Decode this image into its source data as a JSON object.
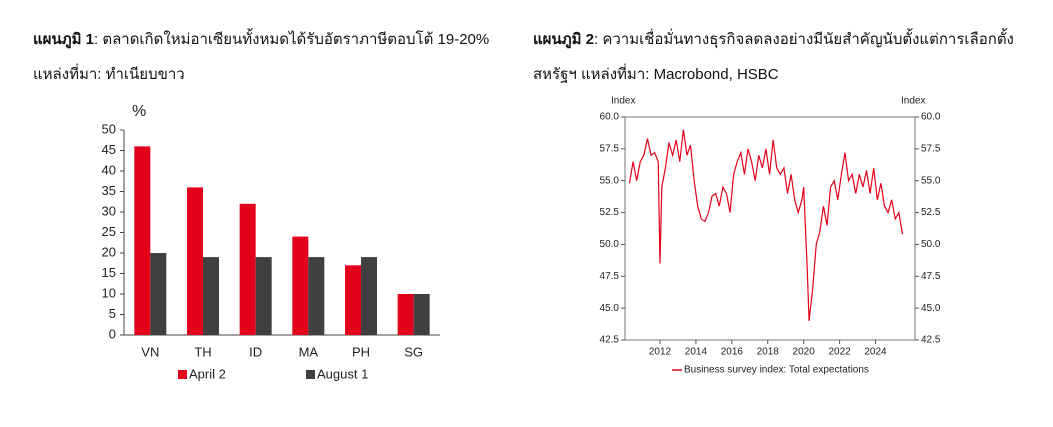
{
  "chart_data": [
    {
      "type": "bar",
      "label": "แผนภูมิ 1",
      "title": ": ตลาดเกิดใหม่อาเซียนทั้งหมดได้รับอัตราภาษีตอบโต้ 19-20% แหล่งที่มา: ทำเนียบขาว",
      "y_label": "%",
      "categories": [
        "VN",
        "TH",
        "ID",
        "MA",
        "PH",
        "SG"
      ],
      "series": [
        {
          "name": "April 2",
          "color": "#e2001a",
          "values": [
            46,
            36,
            32,
            24,
            17,
            10
          ]
        },
        {
          "name": "August 1",
          "color": "#404040",
          "values": [
            20,
            19,
            19,
            19,
            19,
            10
          ]
        }
      ],
      "ylim": [
        0,
        50
      ],
      "yticks": [
        0,
        5,
        10,
        15,
        20,
        25,
        30,
        35,
        40,
        45,
        50
      ],
      "grid": false
    },
    {
      "type": "line",
      "label": "แผนภูมิ 2",
      "title": ": ความเชื่อมั่นทางธุรกิจลดลงอย่างมีนัยสำคัญนับตั้งแต่การเลือกตั้งสหรัฐฯ แหล่งที่มา: Macrobond, HSBC",
      "y_label": "Index",
      "y2_label": "Index",
      "x": [
        2010.3,
        2010.5,
        2010.7,
        2010.9,
        2011.1,
        2011.3,
        2011.5,
        2011.7,
        2011.9,
        2012.0,
        2012.1,
        2012.3,
        2012.5,
        2012.7,
        2012.9,
        2013.1,
        2013.3,
        2013.5,
        2013.7,
        2013.9,
        2014.1,
        2014.3,
        2014.5,
        2014.7,
        2014.9,
        2015.1,
        2015.3,
        2015.5,
        2015.7,
        2015.9,
        2016.1,
        2016.3,
        2016.5,
        2016.7,
        2016.9,
        2017.1,
        2017.3,
        2017.5,
        2017.7,
        2017.9,
        2018.1,
        2018.3,
        2018.5,
        2018.7,
        2018.9,
        2019.1,
        2019.3,
        2019.5,
        2019.7,
        2019.9,
        2020.0,
        2020.2,
        2020.3,
        2020.5,
        2020.7,
        2020.9,
        2021.1,
        2021.3,
        2021.5,
        2021.7,
        2021.9,
        2022.1,
        2022.3,
        2022.5,
        2022.7,
        2022.9,
        2023.1,
        2023.3,
        2023.5,
        2023.7,
        2023.9,
        2024.1,
        2024.3,
        2024.5,
        2024.7,
        2024.9,
        2025.1,
        2025.3,
        2025.5
      ],
      "series": [
        {
          "name": "Business survey index: Total expectations",
          "color": "#e2001a",
          "values": [
            54.8,
            56.5,
            55.0,
            56.5,
            57.0,
            58.3,
            57.0,
            57.2,
            56.5,
            48.5,
            54.5,
            56.0,
            58.0,
            57.0,
            58.2,
            56.5,
            59.0,
            57.0,
            57.8,
            55.0,
            53.0,
            52.0,
            51.8,
            52.5,
            53.8,
            54.0,
            53.0,
            54.5,
            54.0,
            52.5,
            55.5,
            56.5,
            57.2,
            55.5,
            57.5,
            56.5,
            55.0,
            57.0,
            56.0,
            57.5,
            55.5,
            58.2,
            56.0,
            55.5,
            56.0,
            54.0,
            55.5,
            53.5,
            52.5,
            53.5,
            54.5,
            48.0,
            44.0,
            46.5,
            50.0,
            51.0,
            53.0,
            51.5,
            54.5,
            55.0,
            53.5,
            55.5,
            57.2,
            55.0,
            55.5,
            54.0,
            55.5,
            54.5,
            55.8,
            54.0,
            56.0,
            53.5,
            54.8,
            53.0,
            52.5,
            53.5,
            52.0,
            52.5,
            50.8
          ]
        }
      ],
      "xlim": [
        2010.05,
        2026.2
      ],
      "xticks": [
        2012,
        2014,
        2016,
        2018,
        2020,
        2022,
        2024
      ],
      "ylim": [
        42.5,
        60
      ],
      "yticks": [
        42.5,
        {
          "value": 45,
          "label": "45.0"
        },
        47.5,
        {
          "value": 50,
          "label": "50.0"
        },
        52.5,
        {
          "value": 55,
          "label": "55.0"
        },
        57.5,
        {
          "value": 60,
          "label": "60.0"
        }
      ],
      "y2lim": [
        42.5,
        60
      ],
      "y2ticks": [
        42.5,
        {
          "value": 45,
          "label": "45.0"
        },
        47.5,
        {
          "value": 50,
          "label": "50.0"
        },
        52.5,
        {
          "value": 55,
          "label": "55.0"
        },
        57.5,
        {
          "value": 60,
          "label": "60.0"
        }
      ],
      "grid": false
    }
  ]
}
